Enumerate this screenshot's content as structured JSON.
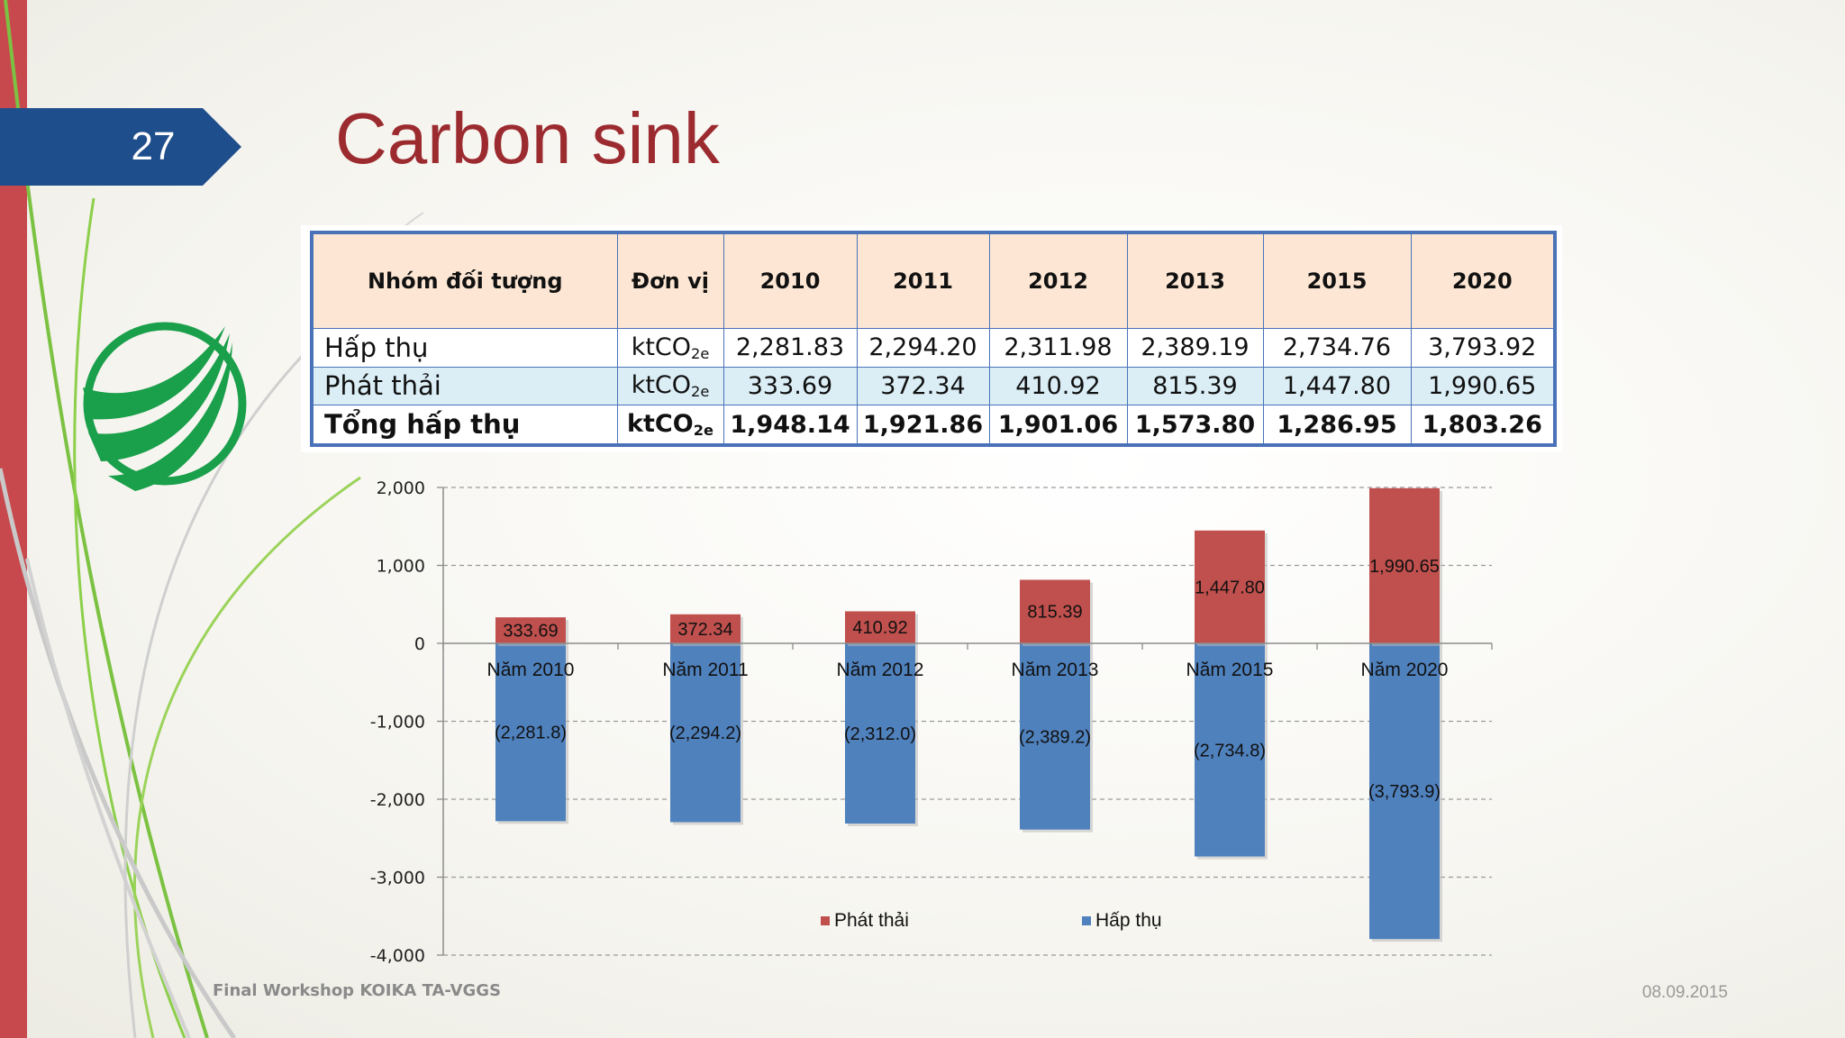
{
  "slide": {
    "number": "27",
    "title": "Carbon sink"
  },
  "table": {
    "headers": [
      "Nhóm đối tượng",
      "Đơn vị",
      "2010",
      "2011",
      "2012",
      "2013",
      "2015",
      "2020"
    ],
    "unit_base": "ktCO",
    "unit_sub": "2e",
    "rows": [
      {
        "label": "Hấp thụ",
        "values": [
          "2,281.83",
          "2,294.20",
          "2,311.98",
          "2,389.19",
          "2,734.76",
          "3,793.92"
        ]
      },
      {
        "label": "Phát thải",
        "values": [
          "333.69",
          "372.34",
          "410.92",
          "815.39",
          "1,447.80",
          "1,990.65"
        ]
      },
      {
        "label": "Tổng hấp thụ",
        "values": [
          "1,948.14",
          "1,921.86",
          "1,901.06",
          "1,573.80",
          "1,286.95",
          "1,803.26"
        ]
      }
    ]
  },
  "chart_data": {
    "type": "bar",
    "stacked": true,
    "categories": [
      "Năm 2010",
      "Năm 2011",
      "Năm 2012",
      "Năm 2013",
      "Năm 2015",
      "Năm 2020"
    ],
    "series": [
      {
        "name": "Phát thải",
        "color": "#c0504d",
        "values": [
          333.69,
          372.34,
          410.92,
          815.39,
          1447.8,
          1990.65
        ],
        "labels": [
          "333.69",
          "372.34",
          "410.92",
          "815.39",
          "1,447.80",
          "1,990.65"
        ]
      },
      {
        "name": "Hấp thụ",
        "color": "#4f81bd",
        "values": [
          -2281.8,
          -2294.2,
          -2312.0,
          -2389.2,
          -2734.8,
          -3793.9
        ],
        "labels": [
          "(2,281.8)",
          "(2,294.2)",
          "(2,312.0)",
          "(2,389.2)",
          "(2,734.8)",
          "(3,793.9)"
        ]
      }
    ],
    "ylim": [
      -4000,
      2000
    ],
    "yticks": [
      2000,
      1000,
      0,
      -1000,
      -2000,
      -3000,
      -4000
    ],
    "ytick_labels": [
      "2,000",
      "1,000",
      "0",
      "-1,000",
      "-2,000",
      "-3,000",
      "-4,000"
    ],
    "grid": true,
    "legend": "bottom",
    "title": "",
    "xlabel": "",
    "ylabel": ""
  },
  "footer": {
    "left": "Final Workshop KOIKA TA-VGGS",
    "right": "08.09.2015"
  }
}
